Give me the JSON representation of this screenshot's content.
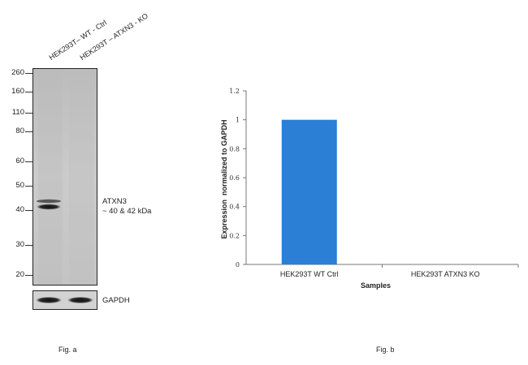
{
  "fig_a": {
    "label": "Fig. a",
    "lanes": [
      "HEK293T– WT - Ctrl",
      "HEK293T – ATXN3 - KO"
    ],
    "mw_markers": [
      "260",
      "160",
      "110",
      "80",
      "60",
      "50",
      "40",
      "30",
      "20"
    ],
    "target_label": "ATXN3",
    "target_size": "~ 40 & 42 kDa",
    "loading_control": "GAPDH"
  },
  "fig_b": {
    "label": "Fig. b"
  },
  "chart_data": {
    "type": "bar",
    "categories": [
      "HEK293T WT Ctrl",
      "HEK293T ATXN3 KO"
    ],
    "values": [
      1.0,
      0.0
    ],
    "xlabel": "Samples",
    "ylabel": "Expression  normalized to GAPDH",
    "ylim": [
      0,
      1.2
    ],
    "yticks": [
      "0",
      "0.2",
      "0.4",
      "0.6",
      "0.8",
      "1",
      "1.2"
    ],
    "grid": false,
    "bar_color": "#2b7fd4"
  }
}
